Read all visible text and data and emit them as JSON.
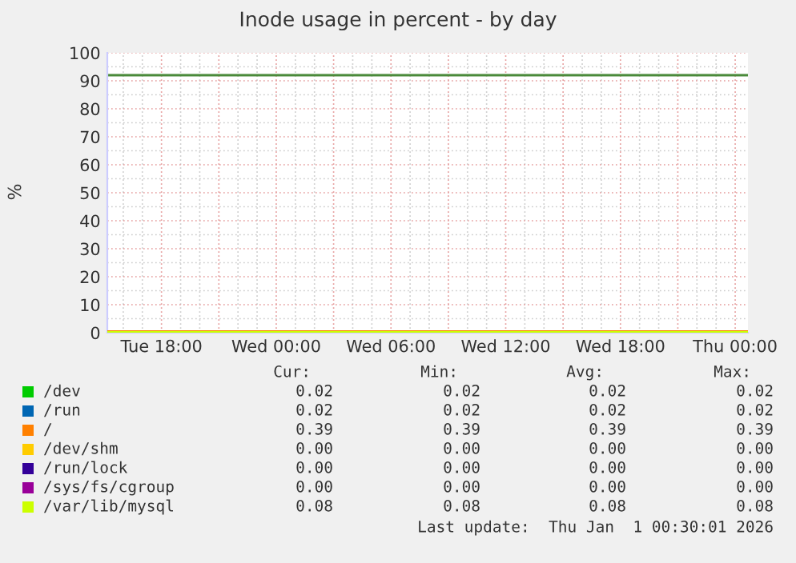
{
  "chart_data": {
    "type": "line",
    "title": "Inode usage in percent - by day",
    "ylabel": "%",
    "x": [
      "2025-12-30T15:10",
      "2026-01-01T00:40"
    ],
    "xlim": [
      "2025-12-30T15:10",
      "2026-01-01T00:40"
    ],
    "xticks": [
      {
        "value": "2025-12-30T18:00",
        "label": "Tue 18:00"
      },
      {
        "value": "2025-12-31T00:00",
        "label": "Wed 00:00"
      },
      {
        "value": "2025-12-31T06:00",
        "label": "Wed 06:00"
      },
      {
        "value": "2025-12-31T12:00",
        "label": "Wed 12:00"
      },
      {
        "value": "2025-12-31T18:00",
        "label": "Wed 18:00"
      },
      {
        "value": "2026-01-01T00:00",
        "label": "Thu 00:00"
      }
    ],
    "ylim": [
      0,
      100
    ],
    "yticks": [
      0,
      10,
      20,
      30,
      40,
      50,
      60,
      70,
      80,
      90,
      100
    ],
    "grid": true,
    "legend": "bottom",
    "marker": "none",
    "line_style": "solid",
    "legend_title": "Cur:",
    "annotations": [
      "Min:",
      "Avg:",
      "Max:",
      "0.02",
      "0.02",
      "0.02",
      "0.02",
      "0.02",
      "0.02",
      "0.02",
      "0.02",
      "0.39",
      "0.39",
      "0.39",
      "0.39",
      "0.00",
      "0.00",
      "0.00",
      "0.00",
      "0.00",
      "0.00",
      "0.00",
      "0.00",
      "0.00",
      "0.00",
      "0.00",
      "0.00",
      "0.08",
      "0.08",
      "0.08",
      "0.08",
      "Last update:  Thu Jan  1 00:30:01 2026"
    ],
    "ref_lines": [
      {
        "axis": "y",
        "value": 92,
        "label": null,
        "color": "#4a8a3a"
      }
    ],
    "series": [
      {
        "name": "/dev",
        "color": "#00cc00",
        "values": [
          null,
          null
        ]
      },
      {
        "name": "/run",
        "color": "#0066b3",
        "values": [
          null,
          null
        ]
      },
      {
        "name": "/",
        "color": "#ff8000",
        "values": [
          0.39,
          0.39
        ]
      },
      {
        "name": "/dev/shm",
        "color": "#ffcc00",
        "values": [
          null,
          null
        ]
      },
      {
        "name": "/run/lock",
        "color": "#330099",
        "values": [
          null,
          null
        ]
      },
      {
        "name": "/sys/fs/cgroup",
        "color": "#990099",
        "values": [
          null,
          null
        ]
      },
      {
        "name": "/var/lib/mysql",
        "color": "#ccff00",
        "values": [
          0.08,
          0.08
        ]
      }
    ]
  }
}
